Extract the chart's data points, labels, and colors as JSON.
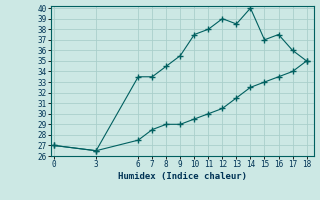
{
  "xlabel": "Humidex (Indice chaleur)",
  "background_color": "#cce8e4",
  "grid_color": "#aacfcb",
  "line_color": "#006060",
  "upper_x": [
    0,
    3,
    6,
    7,
    8,
    9,
    10,
    11,
    12,
    13,
    14,
    15,
    16,
    17,
    18
  ],
  "upper_y": [
    27,
    26.5,
    33.5,
    33.5,
    34.5,
    35.5,
    37.5,
    38,
    39,
    38.5,
    40,
    37,
    37.5,
    36,
    35
  ],
  "lower_x": [
    0,
    3,
    6,
    7,
    8,
    9,
    10,
    11,
    12,
    13,
    14,
    15,
    16,
    17,
    18
  ],
  "lower_y": [
    27,
    26.5,
    27.5,
    28.5,
    29,
    29,
    29.5,
    30,
    30.5,
    31.5,
    32.5,
    33,
    33.5,
    34,
    35
  ],
  "xlim": [
    -0.2,
    18.5
  ],
  "ylim": [
    26,
    40.2
  ],
  "xticks": [
    0,
    3,
    6,
    7,
    8,
    9,
    10,
    11,
    12,
    13,
    14,
    15,
    16,
    17,
    18
  ],
  "yticks": [
    26,
    27,
    28,
    29,
    30,
    31,
    32,
    33,
    34,
    35,
    36,
    37,
    38,
    39,
    40
  ],
  "marker": "+"
}
